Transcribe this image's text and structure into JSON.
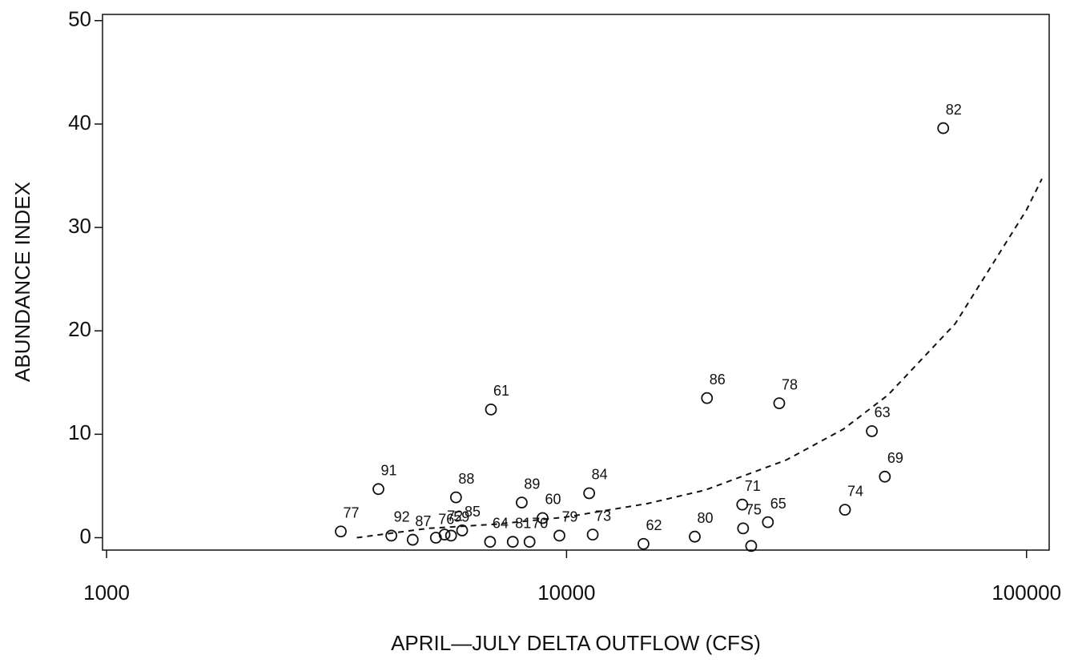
{
  "chart_data": {
    "type": "scatter",
    "x_label": "APRIL—JULY DELTA OUTFLOW (CFS)",
    "y_label": "ABUNDANCE INDEX",
    "xscale": "log",
    "xlim": [
      980,
      112000
    ],
    "ylim": [
      -1.2,
      50.6
    ],
    "xticks": [
      1000,
      10000,
      100000
    ],
    "yticks": [
      0,
      10,
      20,
      30,
      40,
      50
    ],
    "series": [
      {
        "name": "observed",
        "color": "#111111",
        "labels": [
          "77",
          "91",
          "92",
          "87",
          "76",
          "72",
          "59",
          "85",
          "88",
          "61",
          "64",
          "81",
          "70",
          "89",
          "60",
          "79",
          "84",
          "73",
          "62",
          "80",
          "86",
          "71",
          "75",
          null,
          "65",
          "78",
          "74",
          "63",
          "69",
          "82"
        ],
        "x": [
          3230,
          3900,
          4160,
          4630,
          5200,
          5430,
          5610,
          5930,
          5750,
          6850,
          6820,
          7640,
          8310,
          7990,
          8870,
          9650,
          11200,
          11400,
          14700,
          19000,
          20200,
          24100,
          24200,
          25200,
          27400,
          29000,
          40300,
          46100,
          49200,
          65900
        ],
        "values": [
          0.6,
          4.7,
          0.2,
          -0.2,
          0,
          0.3,
          0.2,
          0.7,
          3.9,
          12.4,
          -0.4,
          -0.4,
          -0.4,
          3.4,
          1.9,
          0.2,
          4.3,
          0.3,
          -0.6,
          0.1,
          13.5,
          3.2,
          0.9,
          -0.8,
          1.5,
          13.0,
          2.7,
          10.3,
          5.9,
          39.6
        ]
      },
      {
        "name": "fit",
        "color": "#111111",
        "style": "dashed",
        "x": [
          3500,
          5000,
          7000,
          10000,
          15000,
          20000,
          30000,
          40000,
          50000,
          70000,
          100000,
          108000
        ],
        "values": [
          0.0,
          0.9,
          1.3,
          2.0,
          3.3,
          4.6,
          7.5,
          10.5,
          13.8,
          20.7,
          31.7,
          34.7
        ]
      }
    ]
  }
}
